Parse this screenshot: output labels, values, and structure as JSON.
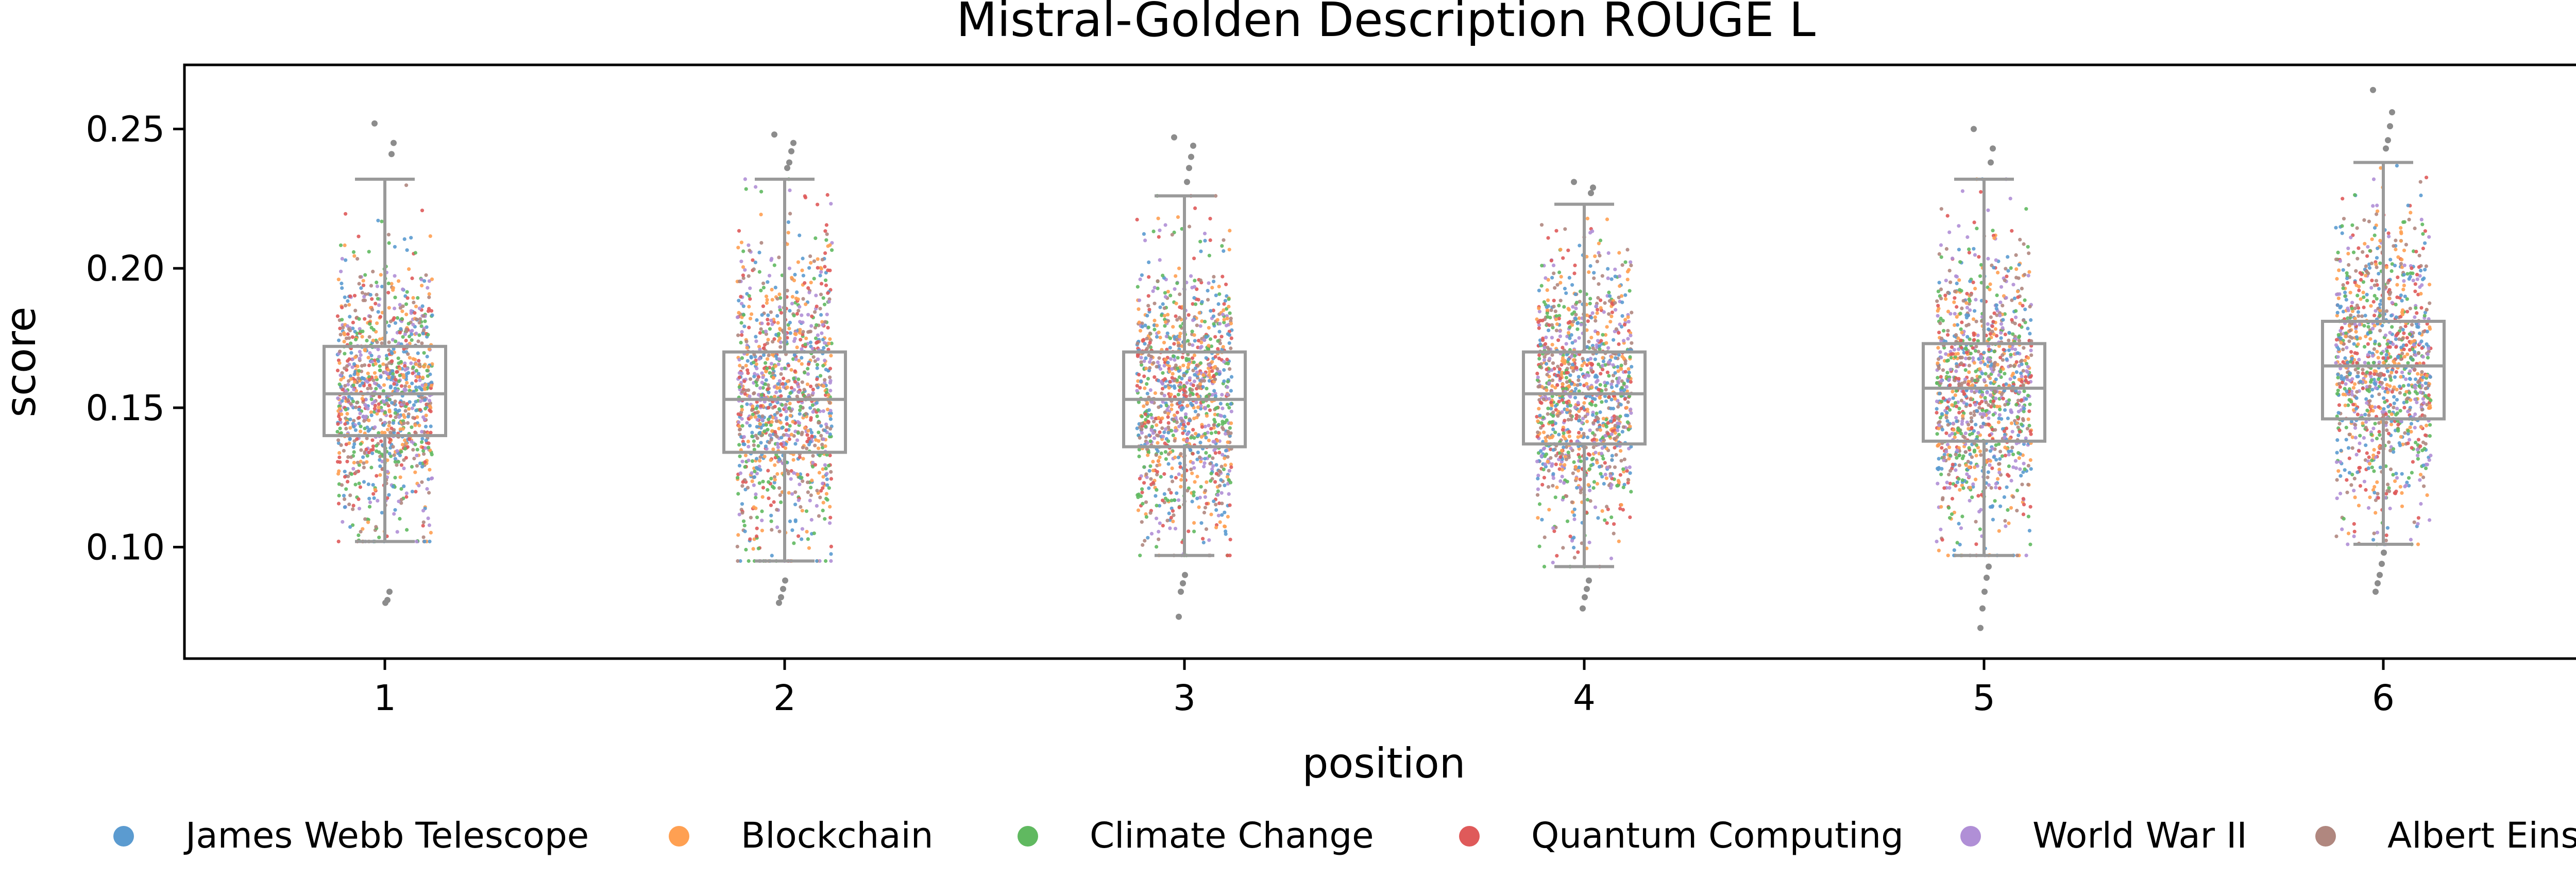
{
  "chart_data": {
    "type": "box-strip",
    "title": "Mistral-Golden Description ROUGE L",
    "xlabel": "position",
    "ylabel": "score",
    "categories": [
      "1",
      "2",
      "3",
      "4",
      "5",
      "6"
    ],
    "ylim": [
      0.06,
      0.273
    ],
    "yticks": [
      0.1,
      0.15,
      0.2,
      0.25
    ],
    "ytick_labels": [
      "0.10",
      "0.15",
      "0.20",
      "0.25"
    ],
    "boxes": [
      {
        "position": "1",
        "whisker_low": 0.102,
        "q1": 0.14,
        "median": 0.155,
        "q3": 0.172,
        "whisker_high": 0.232
      },
      {
        "position": "2",
        "whisker_low": 0.095,
        "q1": 0.134,
        "median": 0.153,
        "q3": 0.17,
        "whisker_high": 0.232
      },
      {
        "position": "3",
        "whisker_low": 0.097,
        "q1": 0.136,
        "median": 0.153,
        "q3": 0.17,
        "whisker_high": 0.226
      },
      {
        "position": "4",
        "whisker_low": 0.093,
        "q1": 0.137,
        "median": 0.155,
        "q3": 0.17,
        "whisker_high": 0.223
      },
      {
        "position": "5",
        "whisker_low": 0.097,
        "q1": 0.138,
        "median": 0.157,
        "q3": 0.173,
        "whisker_high": 0.232
      },
      {
        "position": "6",
        "whisker_low": 0.101,
        "q1": 0.146,
        "median": 0.165,
        "q3": 0.181,
        "whisker_high": 0.238
      }
    ],
    "outliers": [
      {
        "position": "1",
        "values": [
          0.252,
          0.245,
          0.241,
          0.084,
          0.081,
          0.08
        ]
      },
      {
        "position": "2",
        "values": [
          0.248,
          0.245,
          0.242,
          0.238,
          0.236,
          0.088,
          0.085,
          0.082,
          0.08
        ]
      },
      {
        "position": "3",
        "values": [
          0.247,
          0.244,
          0.24,
          0.236,
          0.231,
          0.09,
          0.087,
          0.084,
          0.075
        ]
      },
      {
        "position": "4",
        "values": [
          0.231,
          0.229,
          0.227,
          0.088,
          0.085,
          0.082,
          0.078
        ]
      },
      {
        "position": "5",
        "values": [
          0.25,
          0.243,
          0.238,
          0.093,
          0.089,
          0.084,
          0.078,
          0.071
        ]
      },
      {
        "position": "6",
        "values": [
          0.264,
          0.256,
          0.251,
          0.246,
          0.243,
          0.098,
          0.094,
          0.09,
          0.087,
          0.084
        ]
      }
    ],
    "series": [
      {
        "name": "James Webb Telescope",
        "color": "#5b9bd0"
      },
      {
        "name": "Blockchain",
        "color": "#ffa052"
      },
      {
        "name": "Climate Change",
        "color": "#60b960"
      },
      {
        "name": "Quantum Computing",
        "color": "#df5a5a"
      },
      {
        "name": "World War II",
        "color": "#b08fd6"
      },
      {
        "name": "Albert Einstein",
        "color": "#b0877f"
      }
    ],
    "legend_position": "bottom",
    "grid": false,
    "box_color": "#9a9a9a",
    "points_per_position": 1100
  }
}
